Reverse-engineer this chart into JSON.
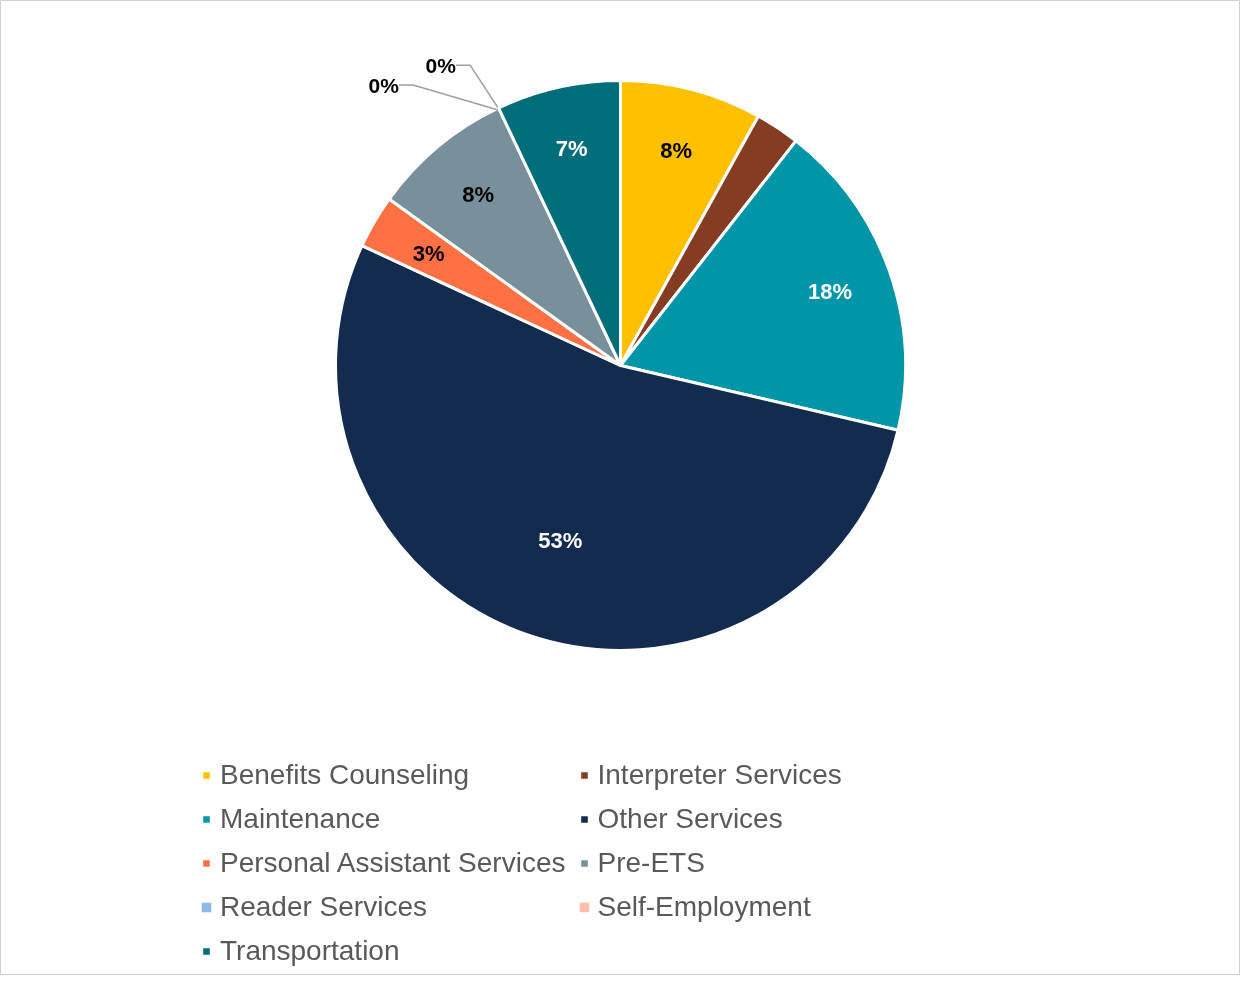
{
  "chart_data": {
    "type": "pie",
    "categories": [
      "Benefits Counseling",
      "Interpreter Services",
      "Maintenance",
      "Other Services",
      "Personal Assistant Services",
      "Pre-ETS",
      "Reader Services",
      "Self-Employment",
      "Transportation"
    ],
    "values": [
      8,
      2.5,
      18,
      53,
      3,
      8,
      0,
      0,
      7
    ],
    "value_labels": [
      "8%",
      null,
      "18%",
      "53%",
      "3%",
      "8%",
      "0%",
      "0%",
      "7%"
    ],
    "colors": [
      "#ffc000",
      "#843c23",
      "#0095a8",
      "#122b4f",
      "#ff7043",
      "#78909c",
      "#90b8e8",
      "#ffbfaa",
      "#006d7a"
    ],
    "legend": "bottom"
  }
}
